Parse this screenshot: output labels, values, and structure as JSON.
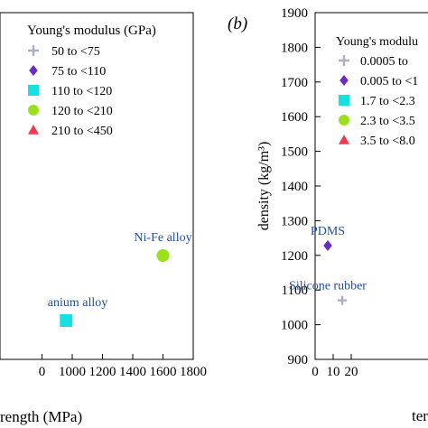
{
  "chart_data": [
    {
      "type": "scatter",
      "panel_label": "",
      "xlabel": "rength (MPa)",
      "ylabel": "",
      "xlim": [
        880,
        1800
      ],
      "x_ticks": [
        "0",
        "1000",
        "1200",
        "1400",
        "1600",
        "1800"
      ],
      "x_tick_values": [
        800,
        1000,
        1200,
        1400,
        1600,
        1800
      ],
      "legend": {
        "title": "Young's modulus (GPa)",
        "placement": "top-left",
        "entries": [
          {
            "label": "50 to <75",
            "marker": "plus",
            "color": "#aeb0c2"
          },
          {
            "label": "75 to <110",
            "marker": "diamond",
            "color": "#6a2bc9"
          },
          {
            "label": "110 to <120",
            "marker": "square",
            "color": "#19e0e0"
          },
          {
            "label": "120 to <210",
            "marker": "circle",
            "color": "#9be01f"
          },
          {
            "label": "210 to <450",
            "marker": "triangle",
            "color": "#ef3b4f"
          }
        ]
      },
      "points": [
        {
          "label": "Ni-Fe alloy",
          "x": 1600,
          "y": 1,
          "marker": "circle",
          "color": "#9be01f"
        },
        {
          "label": "anium alloy",
          "x": 960,
          "y": 0,
          "marker": "square",
          "color": "#19e0e0"
        }
      ]
    },
    {
      "type": "scatter",
      "panel_label": "(b)",
      "xlabel": "ter",
      "ylabel": "density (kg/m³)",
      "ylim": [
        900,
        1900
      ],
      "y_ticks": [
        "900",
        "1000",
        "1100",
        "1200",
        "1300",
        "1400",
        "1500",
        "1600",
        "1700",
        "1800",
        "1900"
      ],
      "y_tick_values": [
        900,
        1000,
        1100,
        1200,
        1300,
        1400,
        1500,
        1600,
        1700,
        1800,
        1900
      ],
      "x_ticks": [
        "0",
        "10",
        "20"
      ],
      "x_tick_values": [
        0,
        10,
        20
      ],
      "legend": {
        "title": "Young's modulu",
        "placement": "top-right",
        "entries": [
          {
            "label": "0.0005 to",
            "marker": "plus",
            "color": "#aeb0c2"
          },
          {
            "label": "0.005 to <1",
            "marker": "diamond",
            "color": "#6a2bc9"
          },
          {
            "label": "1.7 to <2.3",
            "marker": "square",
            "color": "#19e0e0"
          },
          {
            "label": "2.3 to <3.5",
            "marker": "circle",
            "color": "#9be01f"
          },
          {
            "label": "3.5 to <8.0",
            "marker": "triangle",
            "color": "#ef3b4f"
          }
        ]
      },
      "points": [
        {
          "label": "PDMS",
          "x": 7,
          "y": 1228,
          "marker": "diamond",
          "color": "#6a2bc9"
        },
        {
          "label": "Silicone rubber",
          "x": 15,
          "y": 1070,
          "marker": "plus",
          "color": "#aeb0c2"
        }
      ]
    }
  ]
}
